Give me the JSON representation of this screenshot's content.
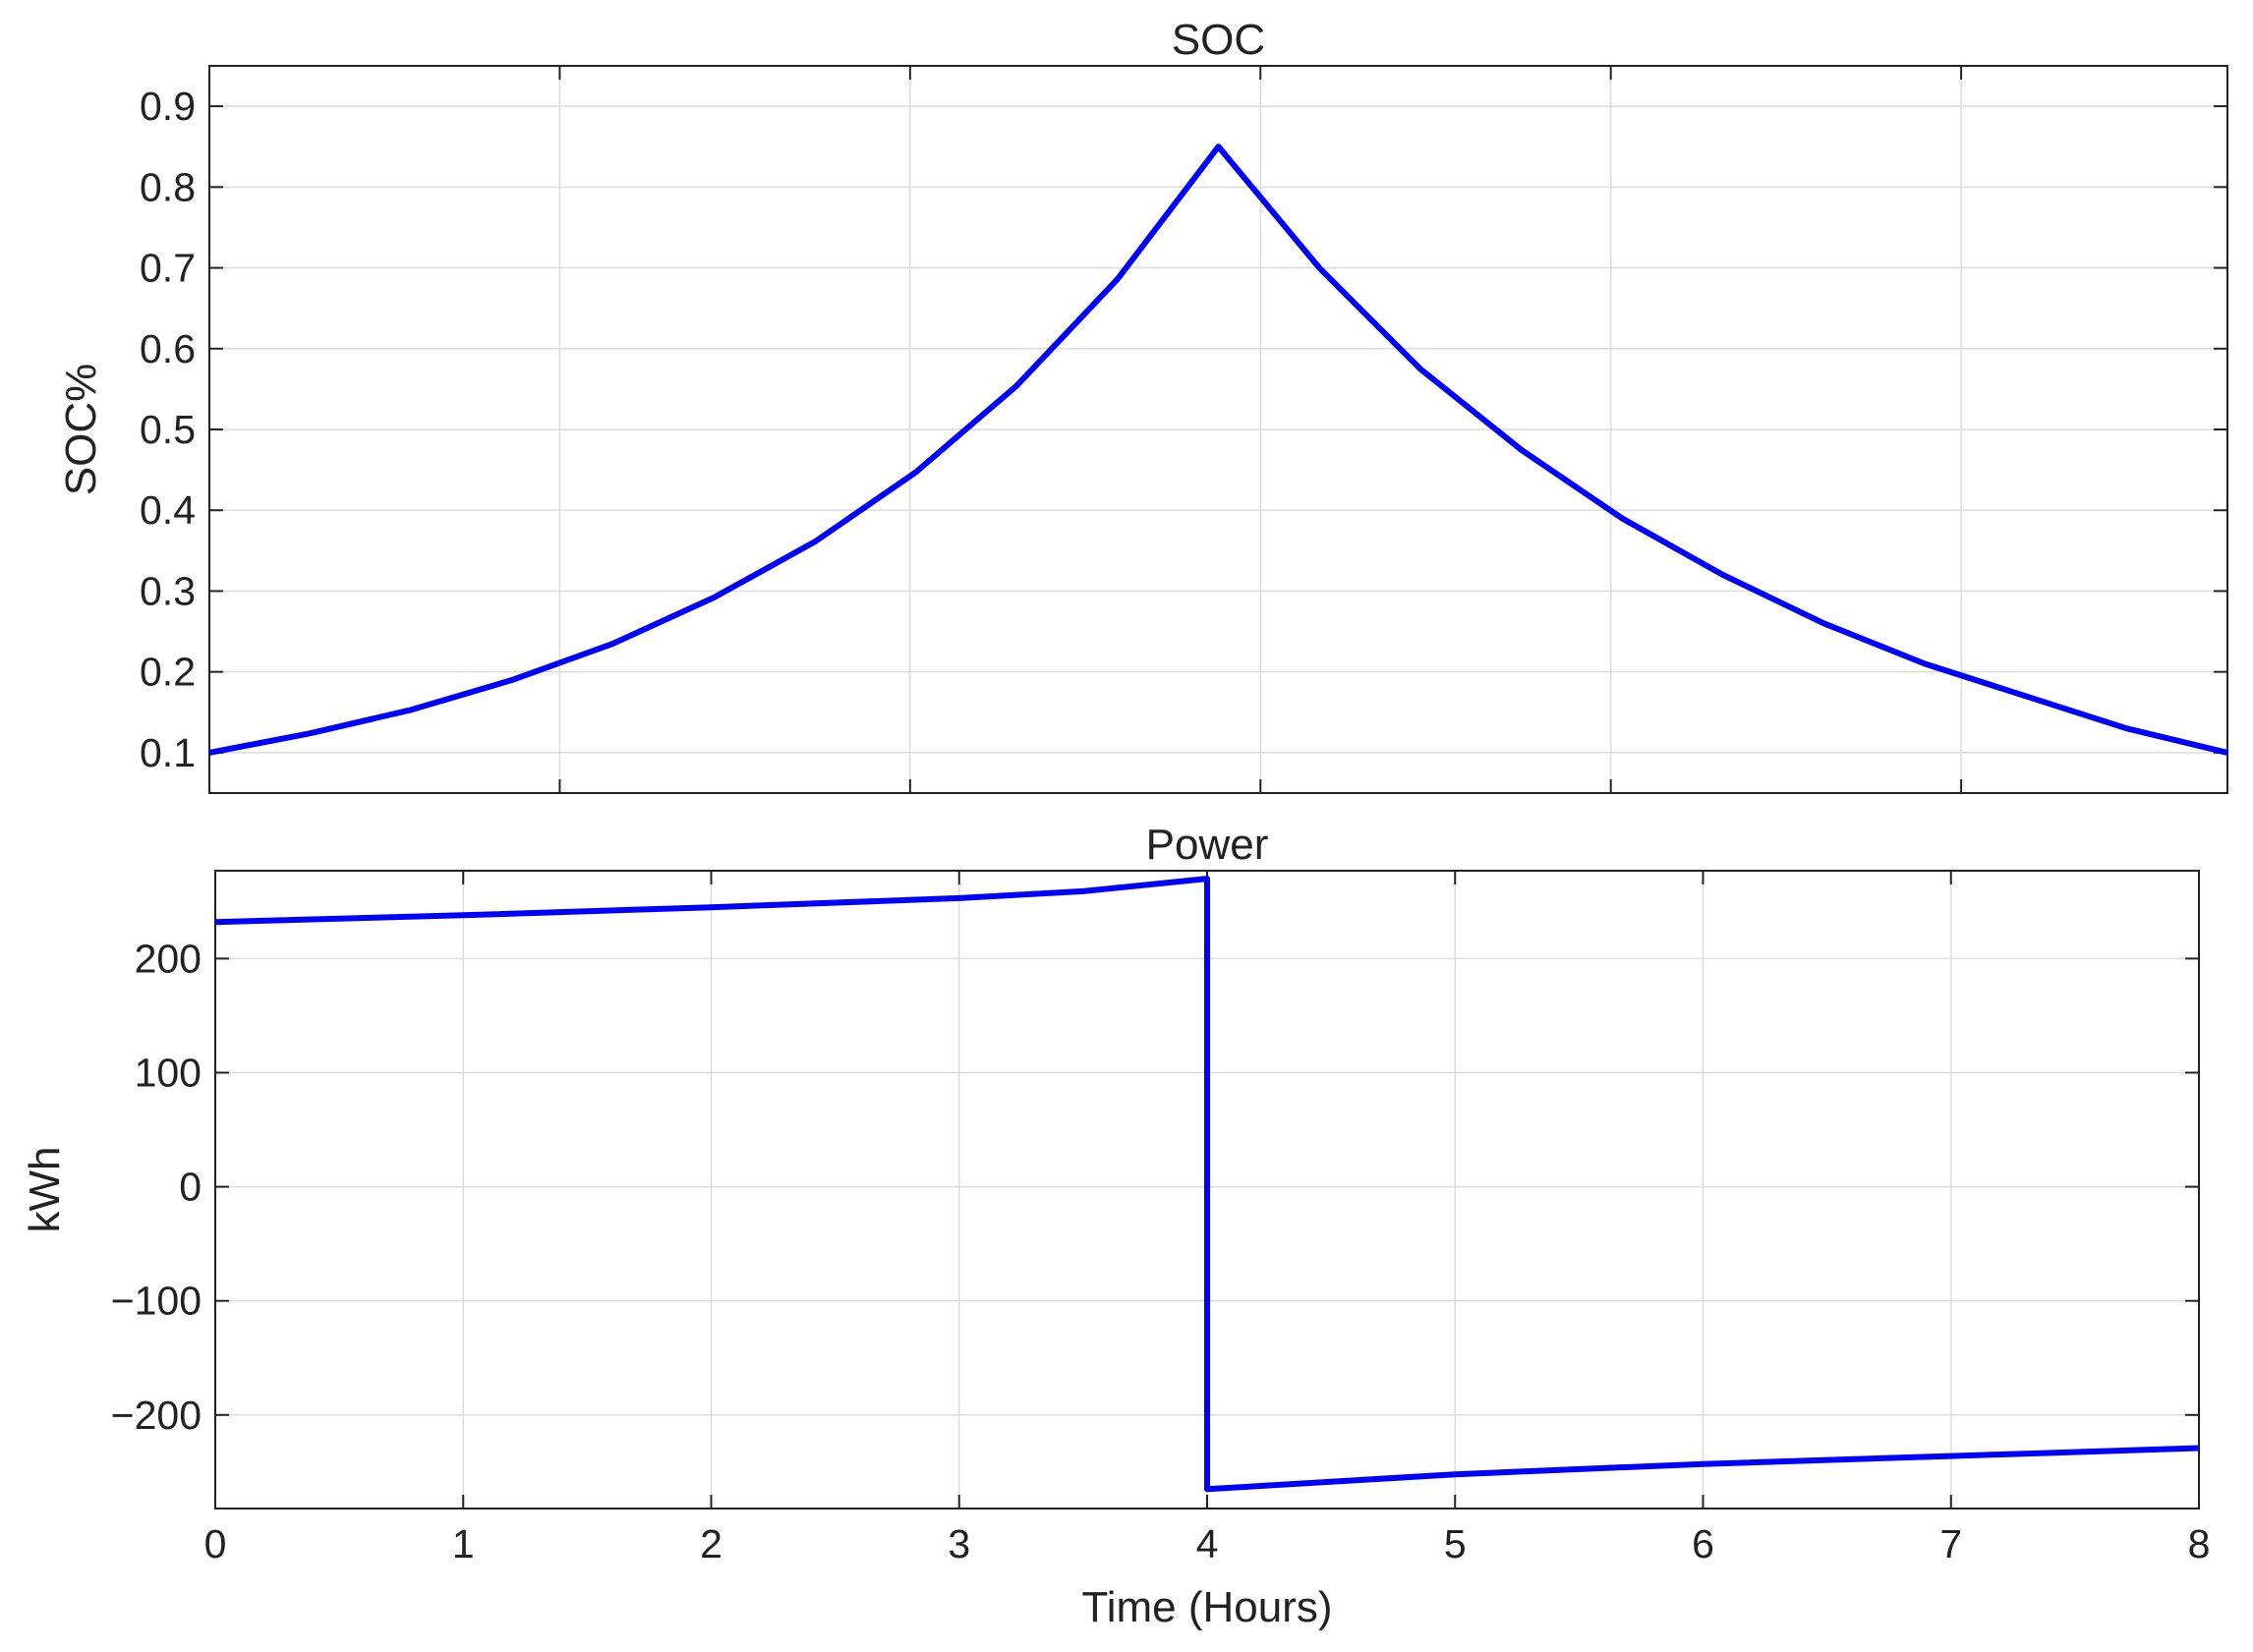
{
  "chart_data": [
    {
      "type": "line",
      "title": "SOC",
      "ylabel": "SOC%",
      "x": [
        0,
        1440,
        2880,
        4320,
        5760,
        7200,
        8640,
        10080,
        11520,
        12960,
        14400,
        15840,
        17280,
        18720,
        20160,
        21600,
        23040,
        24480,
        25920,
        27360,
        28800
      ],
      "series": [
        {
          "name": "SOC",
          "color": "#0000ff",
          "values": [
            0.1,
            0.124,
            0.153,
            0.19,
            0.235,
            0.292,
            0.361,
            0.447,
            0.554,
            0.686,
            0.85,
            0.7,
            0.575,
            0.475,
            0.39,
            0.32,
            0.26,
            0.21,
            0.17,
            0.13,
            0.1
          ]
        }
      ],
      "xlim": [
        0,
        28800
      ],
      "xticks": [
        0,
        5000,
        10000,
        15000,
        20000,
        25000
      ],
      "ylim": [
        0.05,
        0.95
      ],
      "yticks": [
        0.1,
        0.2,
        0.3,
        0.4,
        0.5,
        0.6,
        0.7,
        0.8,
        0.9
      ],
      "grid": true
    },
    {
      "type": "line",
      "title": "Power",
      "ylabel": "kWh",
      "xlabel": "Time (Hours)",
      "x": [
        0,
        1,
        2,
        3,
        3.5,
        4,
        4,
        5,
        6,
        7,
        8
      ],
      "series": [
        {
          "name": "Power",
          "color": "#0000ff",
          "values": [
            232,
            238,
            245,
            253,
            259,
            270,
            -265,
            -252,
            -243,
            -236,
            -229
          ]
        }
      ],
      "xlim": [
        0,
        8
      ],
      "xticks": [
        0,
        1,
        2,
        3,
        4,
        5,
        6,
        7,
        8
      ],
      "ylim": [
        -282,
        277
      ],
      "yticks": [
        {
          "value": -200,
          "label": "−200"
        },
        {
          "value": -100,
          "label": "−100"
        },
        0,
        100,
        200
      ],
      "grid": true
    }
  ]
}
